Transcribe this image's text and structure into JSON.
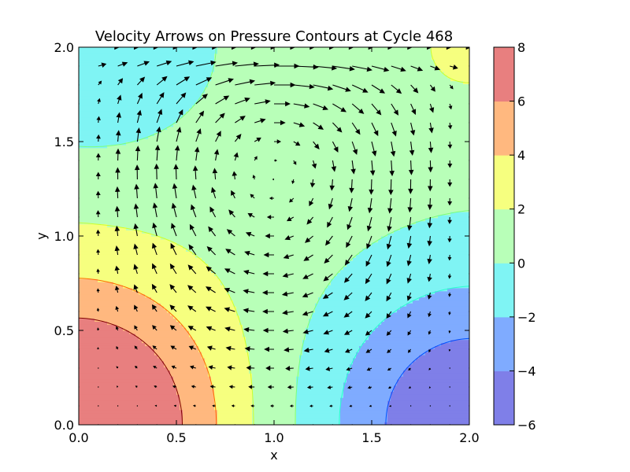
{
  "chart_data": {
    "type": "contour",
    "title": "Velocity Arrows on Pressure Contours at Cycle 468",
    "xlabel": "x",
    "ylabel": "y",
    "xlim": [
      0.0,
      2.0
    ],
    "ylim": [
      0.0,
      2.0
    ],
    "x_ticks": [
      "0.0",
      "0.5",
      "1.0",
      "1.5",
      "2.0"
    ],
    "y_ticks": [
      "0.0",
      "0.5",
      "1.0",
      "1.5",
      "2.0"
    ],
    "x_tick_values": [
      0,
      0.5,
      1,
      1.5,
      2
    ],
    "y_tick_values": [
      0,
      0.5,
      1,
      1.5,
      2
    ],
    "grid": false,
    "colorbar": {
      "levels": [
        -6,
        -4,
        -2,
        0,
        2,
        4,
        6,
        8
      ],
      "tick_labels": [
        "−6",
        "−4",
        "−2",
        "0",
        "2",
        "4",
        "6",
        "8"
      ],
      "fill_colors": [
        "#7f7fe8",
        "#7fabff",
        "#7ff4f4",
        "#b8ffb8",
        "#f6ff7f",
        "#ffb87f",
        "#e87f7f"
      ],
      "line_colors": [
        "#00007f",
        "#0050ff",
        "#29ffce",
        "#7dff7a",
        "#ceff29",
        "#ff6800",
        "#7f0000"
      ]
    },
    "quiver": {
      "description": "lid-driven cavity velocity field; top lid moves right",
      "nx": 21,
      "ny": 21
    }
  }
}
